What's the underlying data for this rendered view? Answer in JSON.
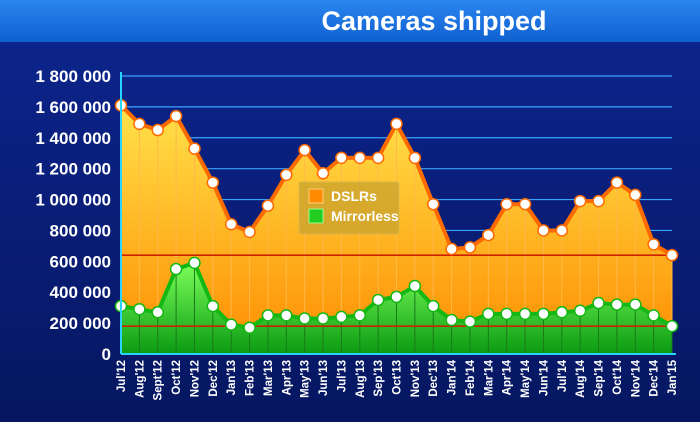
{
  "chart_data": {
    "type": "area",
    "title": "Cameras shipped",
    "xlabel": "",
    "ylabel": "",
    "ylim": [
      0,
      1800000
    ],
    "yticks": [
      {
        "value": 0,
        "label": "0"
      },
      {
        "value": 200000,
        "label": "200 000"
      },
      {
        "value": 400000,
        "label": "400 000"
      },
      {
        "value": 600000,
        "label": "600 000"
      },
      {
        "value": 800000,
        "label": "800 000"
      },
      {
        "value": 1000000,
        "label": "1 000 000"
      },
      {
        "value": 1200000,
        "label": "1 200 000"
      },
      {
        "value": 1400000,
        "label": "1 400 000"
      },
      {
        "value": 1600000,
        "label": "1 600 000"
      },
      {
        "value": 1800000,
        "label": "1 800 000"
      }
    ],
    "categories": [
      "Jul'12",
      "Aug'12",
      "Sept'12",
      "Oct'12",
      "Nov'12",
      "Dec'12",
      "Jan'13",
      "Feb'13",
      "Mar'13",
      "Apr'13",
      "May'13",
      "Jun'13",
      "Jul'13",
      "Aug'13",
      "Sep'13",
      "Oct'13",
      "Nov'13",
      "Dec'13",
      "Jan'14",
      "Feb'14",
      "Mar'14",
      "Apr'14",
      "May'14",
      "Jun'14",
      "Jul'14",
      "Aug'14",
      "Sep'14",
      "Oct'14",
      "Nov'14",
      "Dec'14",
      "Jan'15"
    ],
    "series": [
      {
        "name": "DSLRs",
        "color": "#ff8a00",
        "values": [
          1610000,
          1490000,
          1450000,
          1540000,
          1330000,
          1110000,
          840000,
          790000,
          960000,
          1160000,
          1320000,
          1170000,
          1270000,
          1270000,
          1270000,
          1490000,
          1270000,
          970000,
          680000,
          690000,
          770000,
          970000,
          970000,
          800000,
          800000,
          990000,
          990000,
          1110000,
          1030000,
          710000,
          640000
        ]
      },
      {
        "name": "Mirrorless",
        "color": "#22cc22",
        "values": [
          310000,
          290000,
          270000,
          550000,
          590000,
          310000,
          190000,
          170000,
          250000,
          250000,
          230000,
          230000,
          240000,
          250000,
          350000,
          370000,
          440000,
          310000,
          220000,
          210000,
          260000,
          260000,
          260000,
          260000,
          270000,
          280000,
          330000,
          320000,
          320000,
          250000,
          180000
        ]
      }
    ],
    "reference_lines": [
      {
        "value": 640000,
        "color": "#cc2200"
      },
      {
        "value": 180000,
        "color": "#cc2200"
      }
    ],
    "legend_position": "center",
    "grid": true
  },
  "colors": {
    "background": "#0a1e7a",
    "title_bar": "#1a73e0",
    "grid": "#3aa3ff",
    "axis": "#2ad2ff"
  }
}
